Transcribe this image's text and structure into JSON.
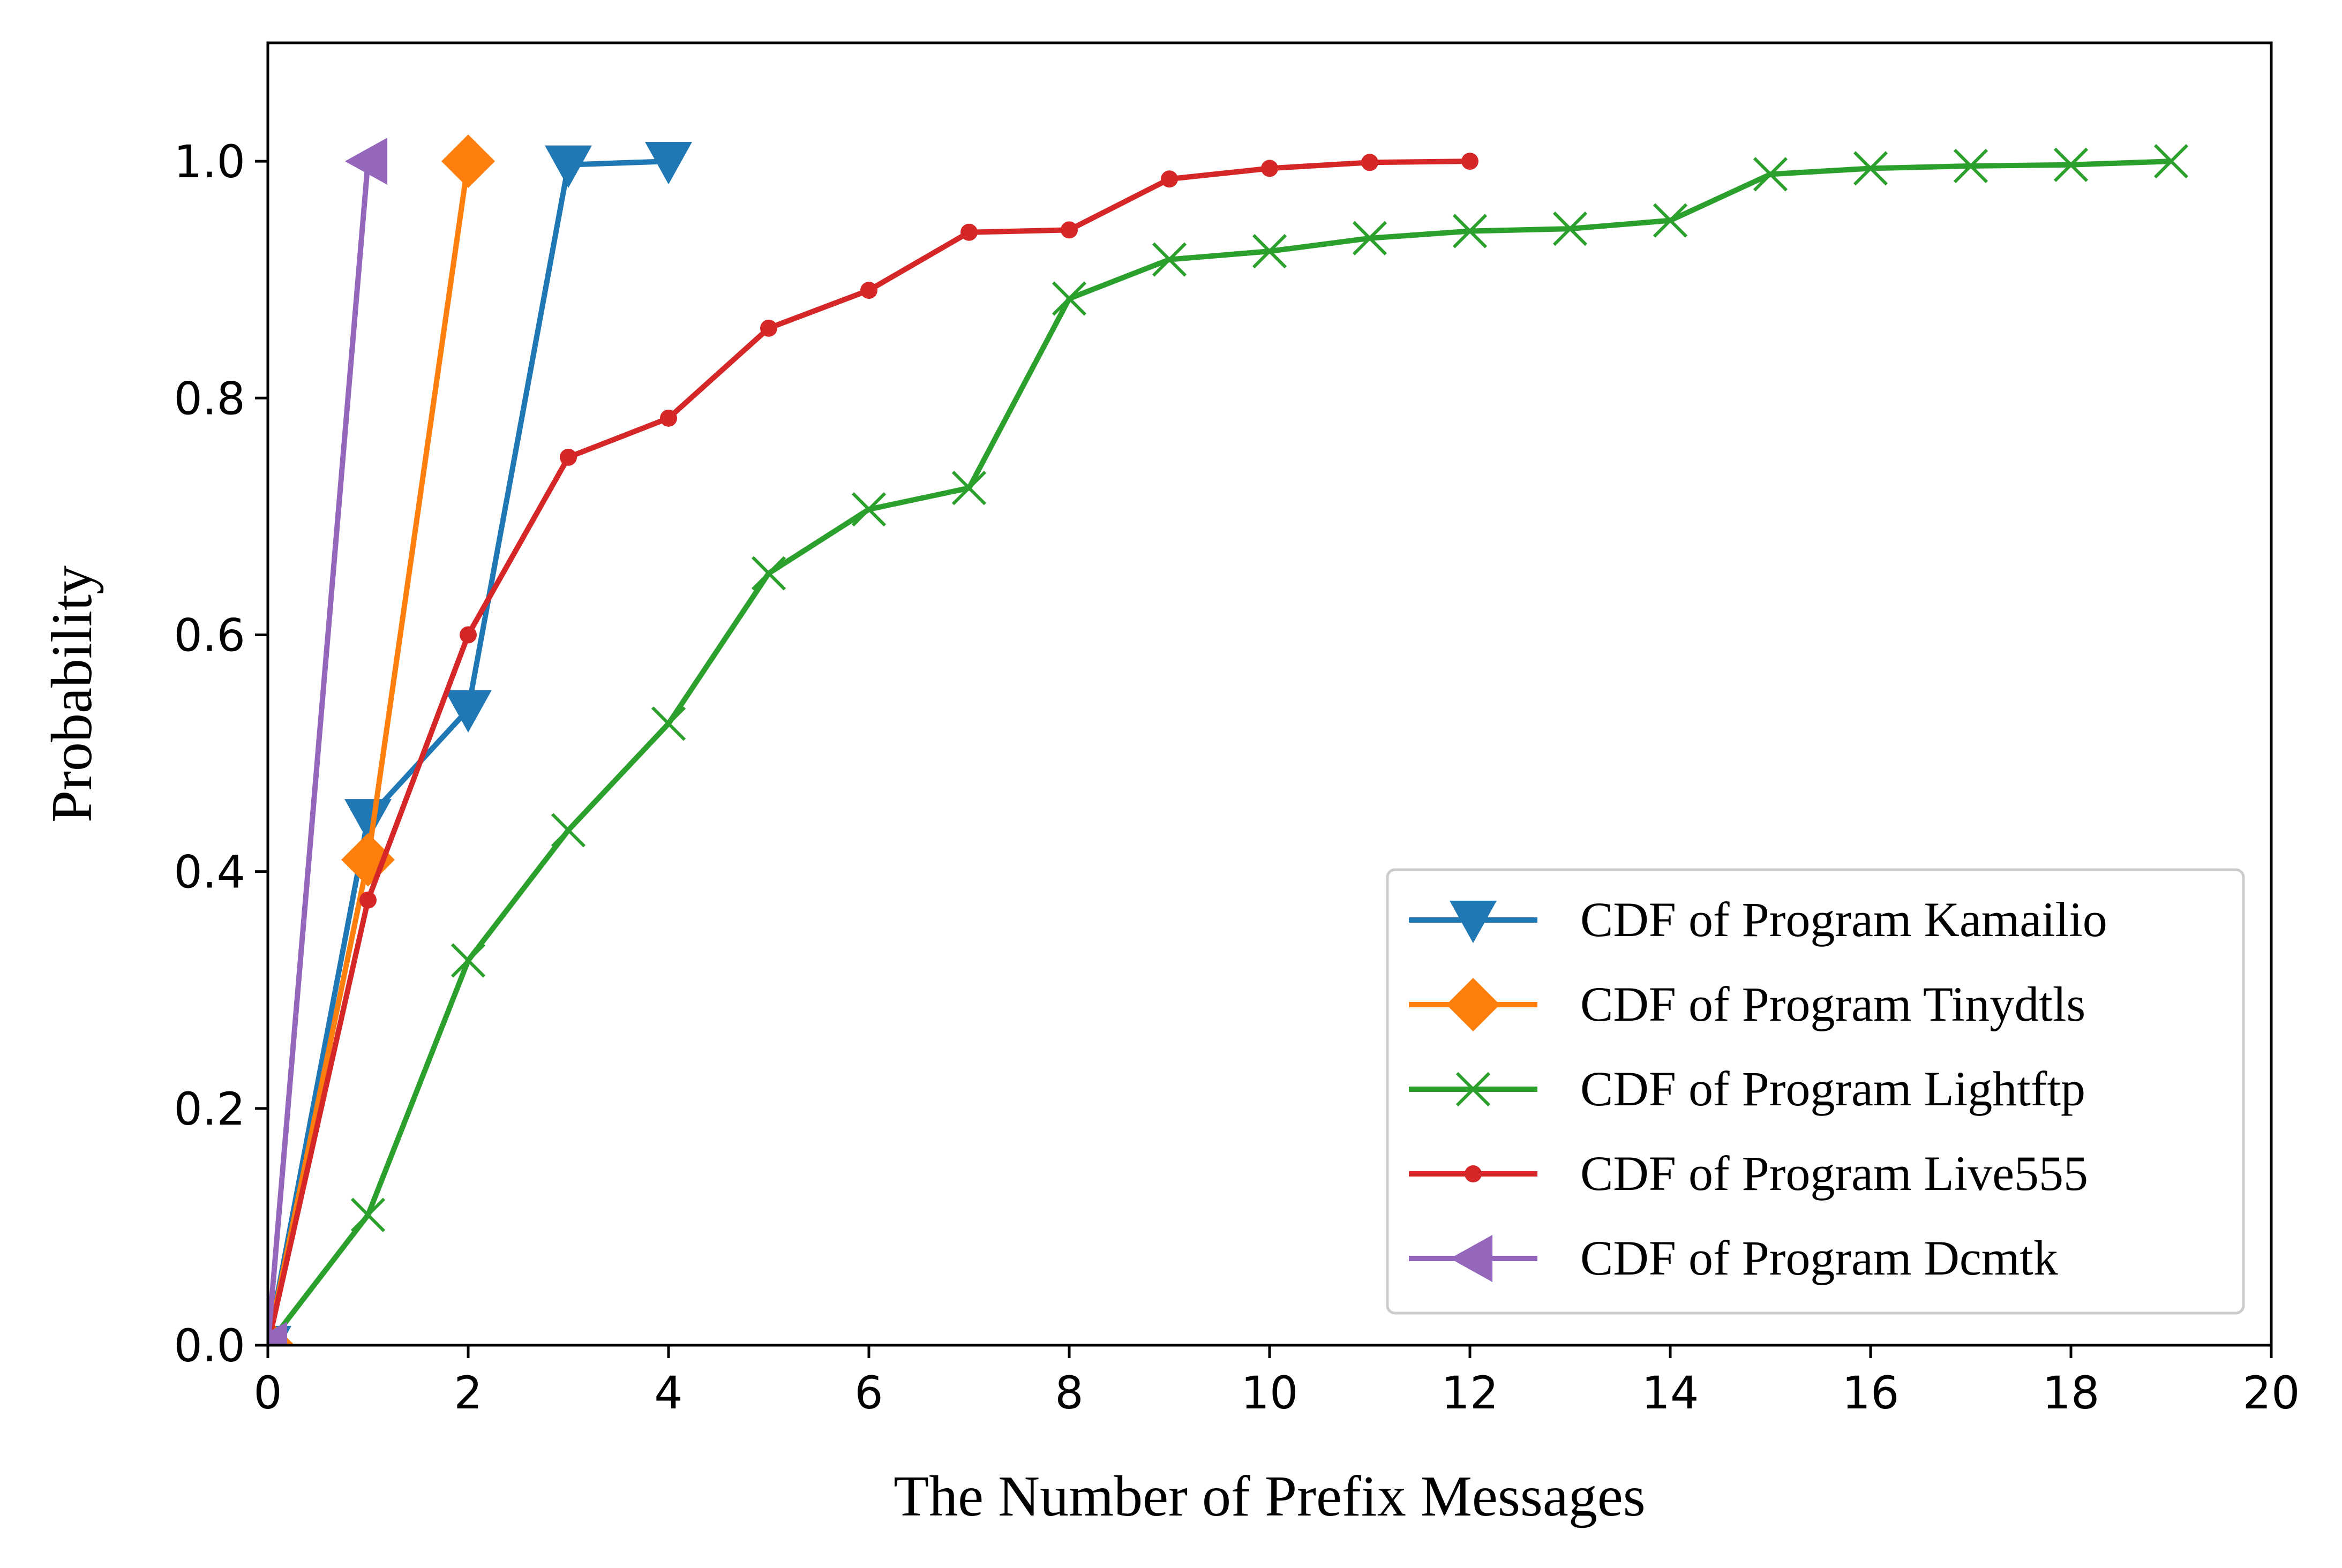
{
  "chart_data": {
    "type": "line",
    "title": "",
    "xlabel": "The Number of Prefix Messages",
    "ylabel": "Probability",
    "xlim": [
      0,
      20
    ],
    "ylim": [
      0,
      1.1
    ],
    "xticks": [
      0,
      2,
      4,
      6,
      8,
      10,
      12,
      14,
      16,
      18,
      20
    ],
    "yticks": [
      0.0,
      0.2,
      0.4,
      0.6,
      0.8,
      1.0
    ],
    "xtick_labels": [
      "0",
      "2",
      "4",
      "6",
      "8",
      "10",
      "12",
      "14",
      "16",
      "18",
      "20"
    ],
    "ytick_labels": [
      "0.0",
      "0.2",
      "0.4",
      "0.6",
      "0.8",
      "1.0"
    ],
    "grid": false,
    "legend_position": "lower-right",
    "series": [
      {
        "name": "CDF of Program Kamailio",
        "color": "#1f77b4",
        "marker": "triangle-down",
        "x": [
          0,
          1,
          2,
          3,
          4
        ],
        "y": [
          0.0,
          0.445,
          0.537,
          0.997,
          1.0
        ]
      },
      {
        "name": "CDF of Program Tinydtls",
        "color": "#ff7f0e",
        "marker": "diamond",
        "x": [
          0,
          1,
          2
        ],
        "y": [
          0.0,
          0.41,
          1.0
        ]
      },
      {
        "name": "CDF of Program Lightftp",
        "color": "#2ca02c",
        "marker": "x",
        "x": [
          0,
          1,
          2,
          3,
          4,
          5,
          6,
          7,
          8,
          9,
          10,
          11,
          12,
          13,
          14,
          15,
          16,
          17,
          18,
          19
        ],
        "y": [
          0.0,
          0.11,
          0.325,
          0.435,
          0.525,
          0.652,
          0.706,
          0.724,
          0.884,
          0.917,
          0.924,
          0.935,
          0.941,
          0.943,
          0.95,
          0.989,
          0.994,
          0.996,
          0.997,
          1.0
        ]
      },
      {
        "name": "CDF of Program Live555",
        "color": "#d62728",
        "marker": "dot",
        "x": [
          0,
          1,
          2,
          3,
          4,
          5,
          6,
          7,
          8,
          9,
          10,
          11,
          12
        ],
        "y": [
          0.0,
          0.376,
          0.6,
          0.75,
          0.783,
          0.859,
          0.891,
          0.94,
          0.942,
          0.985,
          0.994,
          0.999,
          1.0
        ]
      },
      {
        "name": "CDF of Program Dcmtk",
        "color": "#9467bd",
        "marker": "triangle-left",
        "x": [
          0,
          1
        ],
        "y": [
          0.0,
          1.0
        ]
      }
    ]
  }
}
